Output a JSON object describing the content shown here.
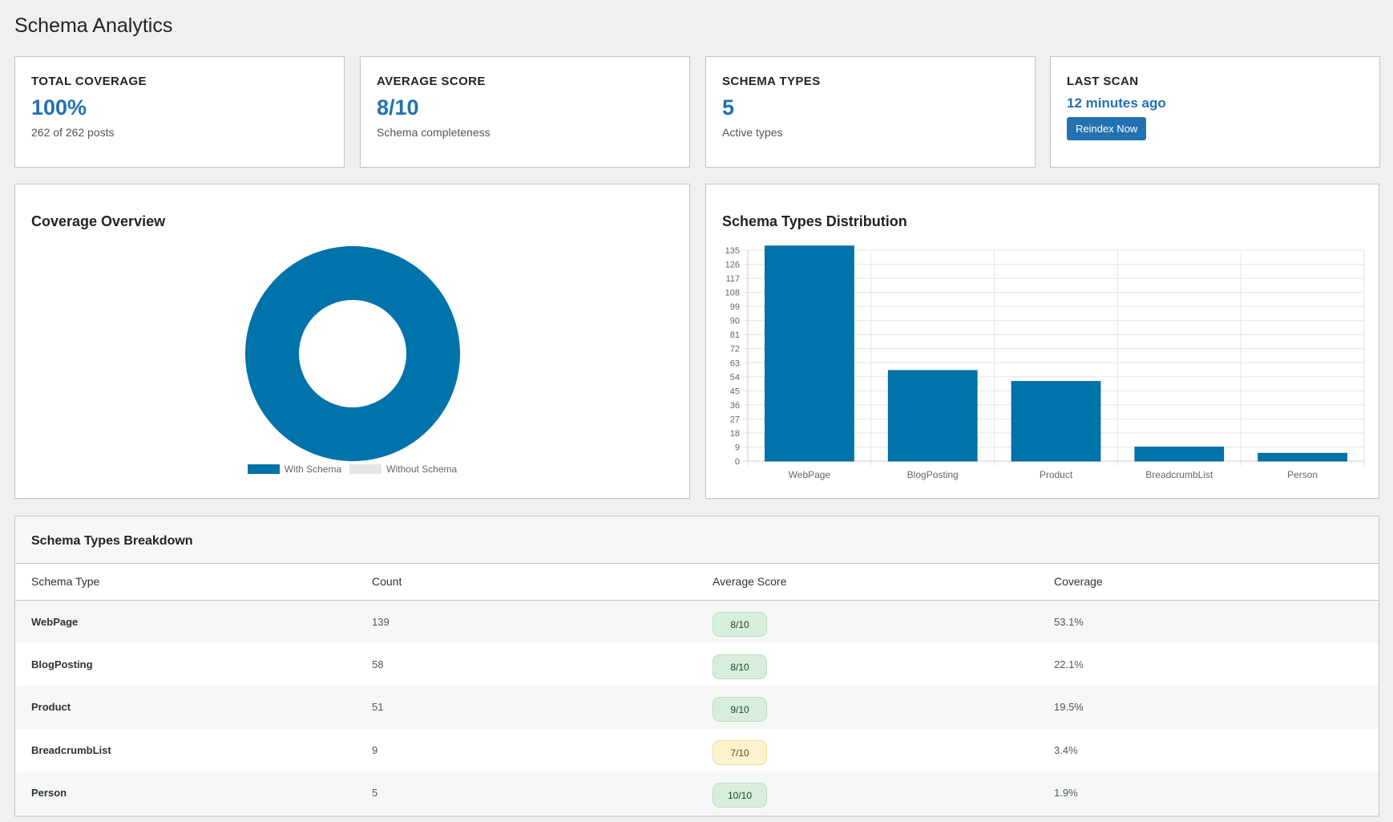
{
  "page": {
    "title": "Schema Analytics"
  },
  "stats": {
    "total_coverage": {
      "label": "TOTAL COVERAGE",
      "value": "100%",
      "sub": "262 of 262 posts"
    },
    "average_score": {
      "label": "AVERAGE SCORE",
      "value": "8/10",
      "sub": "Schema completeness"
    },
    "schema_types": {
      "label": "SCHEMA TYPES",
      "value": "5",
      "sub": "Active types"
    },
    "last_scan": {
      "label": "LAST SCAN",
      "value": "12 minutes ago",
      "button_label": "Reindex Now"
    }
  },
  "coverage_panel": {
    "title": "Coverage Overview",
    "legend": [
      {
        "label": "With Schema",
        "color": "#0073aa"
      },
      {
        "label": "Without Schema",
        "color": "#e5e5e5"
      }
    ]
  },
  "distribution_panel": {
    "title": "Schema Types Distribution"
  },
  "chart_data": [
    {
      "type": "pie",
      "title": "Coverage Overview",
      "categories": [
        "With Schema",
        "Without Schema"
      ],
      "values": [
        262,
        0
      ],
      "colors": [
        "#0073aa",
        "#e5e5e5"
      ],
      "donut": true
    },
    {
      "type": "bar",
      "title": "Schema Types Distribution",
      "categories": [
        "WebPage",
        "BlogPosting",
        "Product",
        "BreadcrumbList",
        "Person"
      ],
      "values": [
        139,
        58,
        51,
        9,
        5
      ],
      "ylim": [
        0,
        135
      ],
      "yticks": [
        0,
        9,
        18,
        27,
        36,
        45,
        54,
        63,
        72,
        81,
        90,
        99,
        108,
        117,
        126,
        135
      ],
      "grid": true,
      "bar_color": "#0073aa"
    }
  ],
  "breakdown": {
    "title": "Schema Types Breakdown",
    "columns": [
      "Schema Type",
      "Count",
      "Average Score",
      "Coverage"
    ],
    "rows": [
      {
        "type": "WebPage",
        "count": "139",
        "score": "8/10",
        "status": "good",
        "coverage": "53.1%"
      },
      {
        "type": "BlogPosting",
        "count": "58",
        "score": "8/10",
        "status": "good",
        "coverage": "22.1%"
      },
      {
        "type": "Product",
        "count": "51",
        "score": "9/10",
        "status": "good",
        "coverage": "19.5%"
      },
      {
        "type": "BreadcrumbList",
        "count": "9",
        "score": "7/10",
        "status": "warn",
        "coverage": "3.4%"
      },
      {
        "type": "Person",
        "count": "5",
        "score": "10/10",
        "status": "good",
        "coverage": "1.9%"
      }
    ]
  }
}
